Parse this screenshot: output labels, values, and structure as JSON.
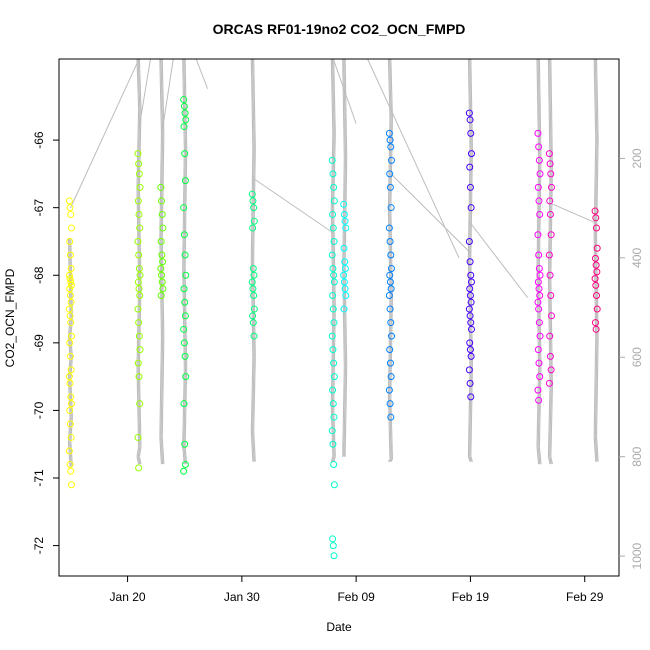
{
  "chart_data": {
    "type": "scatter",
    "title": "ORCAS RF01-19no2 CO2_OCN_FMPD",
    "xlabel": "Date",
    "ylabel": "CO2_OCN_FMPD",
    "xlim": [
      "2016-01-14",
      "2016-03-03"
    ],
    "ylim": [
      -72.45,
      -64.8
    ],
    "x_ticks": [
      {
        "date": "2016-01-20",
        "label": "Jan 20"
      },
      {
        "date": "2016-01-30",
        "label": "Jan 30"
      },
      {
        "date": "2016-02-09",
        "label": "Feb 09"
      },
      {
        "date": "2016-02-19",
        "label": "Feb 19"
      },
      {
        "date": "2016-02-29",
        "label": "Feb 29"
      }
    ],
    "y_ticks": [
      -72,
      -71,
      -70,
      -69,
      -68,
      -67,
      -66
    ],
    "right_axis": {
      "ylim": [
        1040,
        0
      ],
      "ticks": [
        200,
        400,
        600,
        800,
        1000
      ],
      "color": "#aaaaaa",
      "series_color": "#bdbdbd"
    },
    "grid": false,
    "series": [
      {
        "date": "2016-01-15",
        "color": "#ffff00",
        "points": [
          -66.9,
          -67.0,
          -67.1,
          -67.3,
          -67.5,
          -67.7,
          -67.9,
          -68.0,
          -68.05,
          -68.1,
          -68.15,
          -68.2,
          -68.3,
          -68.4,
          -68.5,
          -68.6,
          -68.7,
          -68.9,
          -69.0,
          -69.2,
          -69.4,
          -69.5,
          -69.6,
          -69.8,
          -69.9,
          -70.0,
          -70.2,
          -70.4,
          -70.6,
          -70.8,
          -70.9,
          -71.1
        ],
        "alt": [
          360,
          520,
          560,
          600,
          640,
          720,
          770,
          820
        ]
      },
      {
        "date": "2016-01-21",
        "color": "#99ff00",
        "points": [
          -66.2,
          -66.35,
          -66.5,
          -66.7,
          -66.9,
          -67.1,
          -67.3,
          -67.5,
          -67.7,
          -67.9,
          -68.0,
          -68.1,
          -68.2,
          -68.3,
          -68.5,
          -68.7,
          -68.9,
          -69.1,
          -69.3,
          -69.5,
          -69.9,
          -70.4,
          -70.85
        ],
        "alt": [
          0,
          100,
          260,
          460,
          620,
          780,
          800,
          815
        ]
      },
      {
        "date": "2016-01-23",
        "color": "#66ff00",
        "points": [
          -66.7,
          -66.9,
          -67.1,
          -67.3,
          -67.5,
          -67.7,
          -67.8,
          -67.9,
          -68.0,
          -68.1,
          -68.2,
          -68.3
        ],
        "alt": [
          0,
          150,
          360,
          560,
          760,
          815
        ]
      },
      {
        "date": "2016-01-25",
        "color": "#00ff40",
        "points": [
          -65.4,
          -65.5,
          -65.6,
          -65.7,
          -65.8,
          -66.2,
          -66.6,
          -67.0,
          -67.4,
          -67.7,
          -68.0,
          -68.2,
          -68.4,
          -68.6,
          -68.8,
          -69.0,
          -69.2,
          -69.5,
          -69.9,
          -70.5,
          -70.8,
          -70.9
        ],
        "alt": [
          0,
          180,
          420,
          620,
          780,
          815
        ]
      },
      {
        "date": "2016-01-31",
        "color": "#00ff80",
        "points": [
          -66.8,
          -66.9,
          -67.0,
          -67.2,
          -67.3,
          -67.9,
          -68.0,
          -68.1,
          -68.2,
          -68.3,
          -68.5,
          -68.6,
          -68.7,
          -68.9
        ],
        "alt": [
          0,
          180,
          400,
          600,
          750,
          810
        ]
      },
      {
        "date": "2016-02-07",
        "color": "#00ffcc",
        "points": [
          -66.3,
          -66.5,
          -66.7,
          -66.9,
          -67.1,
          -67.3,
          -67.5,
          -67.7,
          -67.9,
          -68.0,
          -68.1,
          -68.3,
          -68.5,
          -68.7,
          -68.9,
          -69.1,
          -69.3,
          -69.5,
          -69.7,
          -69.9,
          -70.1,
          -70.3,
          -70.5,
          -70.8,
          -71.1,
          -71.9,
          -72.0,
          -72.15
        ],
        "alt": [
          0,
          150,
          300,
          500,
          700,
          800,
          810
        ]
      },
      {
        "date": "2016-02-08",
        "color": "#00ffff",
        "points": [
          -66.95,
          -67.1,
          -67.2,
          -67.3,
          -67.6,
          -67.8,
          -67.9,
          -68.0,
          -68.1,
          -68.2,
          -68.3,
          -68.5
        ],
        "alt": [
          0,
          200,
          420,
          620,
          800
        ]
      },
      {
        "date": "2016-02-12",
        "color": "#0080ff",
        "points": [
          -65.9,
          -66.0,
          -66.1,
          -66.3,
          -66.5,
          -66.7,
          -67.0,
          -67.3,
          -67.5,
          -67.7,
          -67.9,
          -68.0,
          -68.1,
          -68.2,
          -68.3,
          -68.5,
          -68.7,
          -68.9,
          -69.1,
          -69.3,
          -69.5,
          -69.7,
          -69.9,
          -70.1
        ],
        "alt": [
          0,
          120,
          300,
          480,
          680,
          805,
          810
        ]
      },
      {
        "date": "2016-02-19",
        "color": "#4400ff",
        "points": [
          -65.6,
          -65.7,
          -65.9,
          -66.2,
          -66.4,
          -66.7,
          -67.0,
          -67.5,
          -67.8,
          -68.0,
          -68.1,
          -68.2,
          -68.3,
          -68.4,
          -68.5,
          -68.6,
          -68.7,
          -68.8,
          -69.0,
          -69.1,
          -69.2,
          -69.4,
          -69.6,
          -69.8
        ],
        "alt": [
          0,
          180,
          400,
          620,
          800,
          810
        ]
      },
      {
        "date": "2016-02-25",
        "color": "#ff00ff",
        "points": [
          -65.9,
          -66.1,
          -66.3,
          -66.5,
          -66.7,
          -66.9,
          -67.1,
          -67.4,
          -67.7,
          -67.9,
          -68.0,
          -68.1,
          -68.2,
          -68.3,
          -68.4,
          -68.5,
          -68.7,
          -68.9,
          -69.1,
          -69.3,
          -69.5,
          -69.7,
          -69.85
        ],
        "alt": [
          0,
          200,
          420,
          620,
          780,
          815
        ]
      },
      {
        "date": "2016-02-26",
        "color": "#ff00cc",
        "points": [
          -66.2,
          -66.35,
          -66.5,
          -66.7,
          -66.9,
          -67.1,
          -67.4,
          -67.7,
          -68.0,
          -68.3,
          -68.6,
          -68.9,
          -69.2,
          -69.4,
          -69.6
        ],
        "alt": [
          0,
          220,
          440,
          660,
          800,
          815
        ]
      },
      {
        "date": "2016-03-01",
        "color": "#ff0080",
        "points": [
          -67.05,
          -67.15,
          -67.3,
          -67.6,
          -67.75,
          -67.85,
          -67.95,
          -68.05,
          -68.15,
          -68.3,
          -68.5,
          -68.7,
          -68.8
        ],
        "alt": [
          0,
          160,
          360,
          560,
          760,
          810
        ]
      }
    ],
    "connectors": [
      {
        "x": [
          "2016-01-15",
          "2016-01-21"
        ],
        "alt": [
          300,
          0
        ]
      },
      {
        "x": [
          "2016-01-21",
          "2016-01-22"
        ],
        "alt": [
          140,
          0
        ]
      },
      {
        "x": [
          "2016-01-23",
          "2016-01-24"
        ],
        "alt": [
          150,
          0
        ]
      },
      {
        "x": [
          "2016-01-26",
          "2016-01-27"
        ],
        "alt": [
          0,
          60
        ]
      },
      {
        "x": [
          "2016-01-31",
          "2016-02-07"
        ],
        "alt": [
          240,
          350
        ]
      },
      {
        "x": [
          "2016-02-07",
          "2016-02-09"
        ],
        "alt": [
          0,
          130
        ]
      },
      {
        "x": [
          "2016-02-10",
          "2016-02-18"
        ],
        "alt": [
          0,
          400
        ]
      },
      {
        "x": [
          "2016-02-12",
          "2016-02-19"
        ],
        "alt": [
          230,
          390
        ]
      },
      {
        "x": [
          "2016-02-19",
          "2016-02-24"
        ],
        "alt": [
          330,
          480
        ]
      },
      {
        "x": [
          "2016-02-26",
          "2016-03-01"
        ],
        "alt": [
          290,
          330
        ]
      }
    ]
  }
}
